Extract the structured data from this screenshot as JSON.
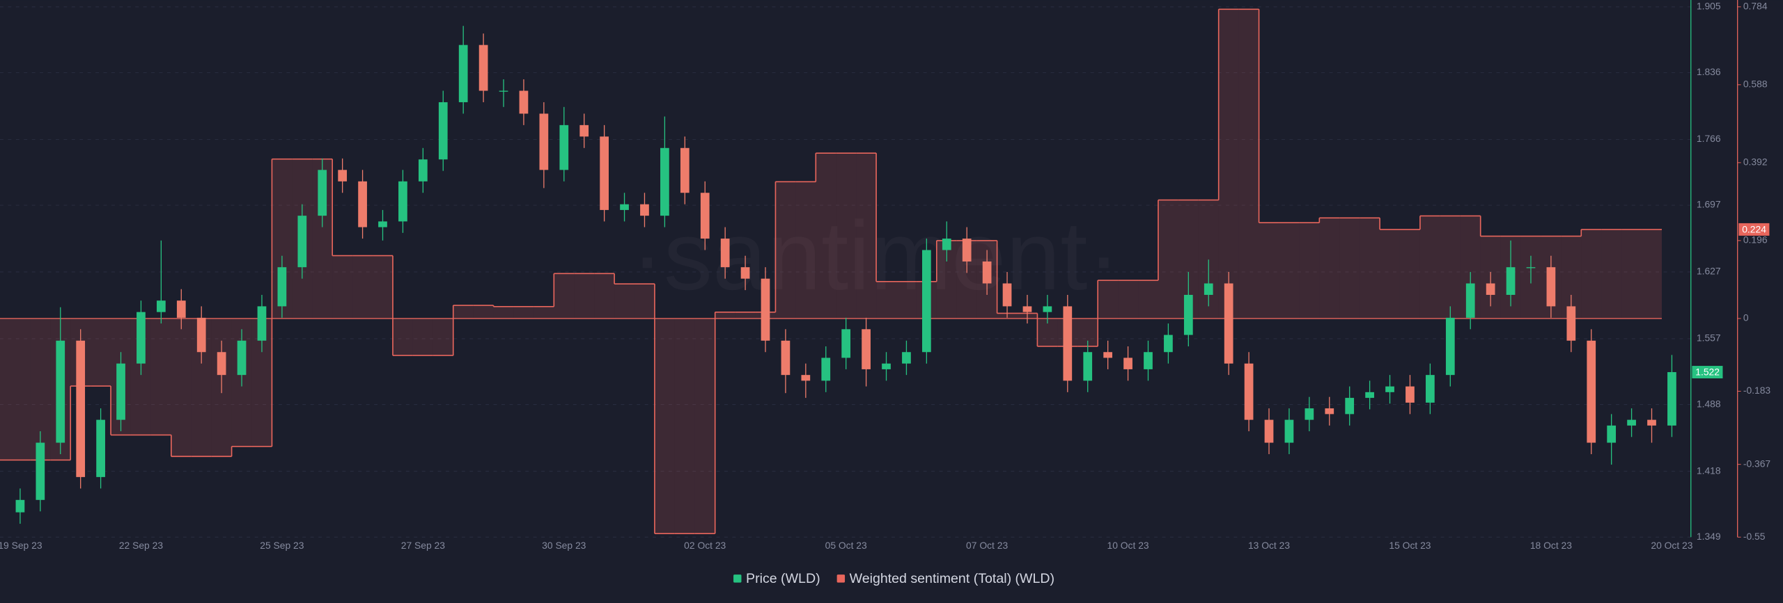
{
  "chart_data": {
    "type": "candlestick",
    "watermark": "·santiment·",
    "categories": [
      "19 Sep 23",
      null,
      null,
      null,
      null,
      null,
      "22 Sep 23",
      null,
      null,
      null,
      null,
      null,
      null,
      "25 Sep 23",
      null,
      null,
      null,
      null,
      null,
      null,
      "27 Sep 23",
      null,
      null,
      null,
      null,
      null,
      null,
      "30 Sep 23",
      null,
      null,
      null,
      null,
      null,
      null,
      "02 Oct 23",
      null,
      null,
      null,
      null,
      null,
      null,
      "05 Oct 23",
      null,
      null,
      null,
      null,
      null,
      null,
      "07 Oct 23",
      null,
      null,
      null,
      null,
      null,
      null,
      "10 Oct 23",
      null,
      null,
      null,
      null,
      null,
      null,
      "13 Oct 23",
      null,
      null,
      null,
      null,
      null,
      null,
      "15 Oct 23",
      null,
      null,
      null,
      null,
      null,
      null,
      "18 Oct 23",
      null,
      null,
      null,
      null,
      null,
      "20 Oct 23"
    ],
    "series": [
      {
        "name": "Price (WLD)",
        "color": "#26c281",
        "down_color": "#ee7c6b",
        "open": [
          1.375,
          1.388,
          1.448,
          1.555,
          1.412,
          1.472,
          1.531,
          1.585,
          1.597,
          1.579,
          1.543,
          1.519,
          1.555,
          1.591,
          1.632,
          1.686,
          1.734,
          1.722,
          1.674,
          1.68,
          1.722,
          1.745,
          1.805,
          1.865,
          1.817,
          1.817,
          1.793,
          1.734,
          1.781,
          1.769,
          1.692,
          1.698,
          1.686,
          1.757,
          1.71,
          1.662,
          1.632,
          1.62,
          1.555,
          1.519,
          1.513,
          1.537,
          1.567,
          1.525,
          1.531,
          1.543,
          1.65,
          1.662,
          1.638,
          1.615,
          1.591,
          1.585,
          1.591,
          1.513,
          1.543,
          1.537,
          1.525,
          1.543,
          1.561,
          1.603,
          1.615,
          1.531,
          1.472,
          1.448,
          1.472,
          1.484,
          1.478,
          1.495,
          1.501,
          1.507,
          1.49,
          1.519,
          1.579,
          1.615,
          1.603,
          1.632,
          1.632,
          1.591,
          1.555,
          1.448,
          1.466,
          1.472,
          1.466
        ],
        "high": [
          1.4,
          1.46,
          1.59,
          1.567,
          1.484,
          1.543,
          1.597,
          1.66,
          1.609,
          1.591,
          1.555,
          1.567,
          1.603,
          1.644,
          1.698,
          1.746,
          1.746,
          1.734,
          1.692,
          1.734,
          1.757,
          1.817,
          1.885,
          1.877,
          1.829,
          1.829,
          1.805,
          1.8,
          1.793,
          1.781,
          1.71,
          1.71,
          1.79,
          1.769,
          1.722,
          1.674,
          1.644,
          1.632,
          1.567,
          1.531,
          1.549,
          1.579,
          1.579,
          1.543,
          1.555,
          1.662,
          1.68,
          1.674,
          1.65,
          1.627,
          1.603,
          1.603,
          1.603,
          1.555,
          1.555,
          1.549,
          1.555,
          1.573,
          1.627,
          1.64,
          1.627,
          1.543,
          1.484,
          1.484,
          1.496,
          1.496,
          1.507,
          1.513,
          1.519,
          1.519,
          1.531,
          1.591,
          1.627,
          1.627,
          1.66,
          1.644,
          1.644,
          1.603,
          1.567,
          1.478,
          1.484,
          1.484,
          1.54
        ],
        "low": [
          1.363,
          1.376,
          1.436,
          1.4,
          1.4,
          1.46,
          1.519,
          1.573,
          1.567,
          1.531,
          1.5,
          1.507,
          1.543,
          1.579,
          1.62,
          1.674,
          1.71,
          1.662,
          1.66,
          1.668,
          1.71,
          1.733,
          1.793,
          1.805,
          1.8,
          1.781,
          1.715,
          1.722,
          1.757,
          1.68,
          1.68,
          1.674,
          1.674,
          1.698,
          1.65,
          1.62,
          1.608,
          1.543,
          1.5,
          1.495,
          1.501,
          1.525,
          1.507,
          1.513,
          1.519,
          1.531,
          1.638,
          1.626,
          1.603,
          1.579,
          1.573,
          1.573,
          1.501,
          1.501,
          1.525,
          1.513,
          1.513,
          1.531,
          1.549,
          1.591,
          1.519,
          1.46,
          1.436,
          1.436,
          1.46,
          1.466,
          1.466,
          1.483,
          1.489,
          1.478,
          1.478,
          1.507,
          1.567,
          1.591,
          1.591,
          1.615,
          1.579,
          1.543,
          1.436,
          1.425,
          1.454,
          1.448,
          1.454
        ],
        "close": [
          1.388,
          1.448,
          1.555,
          1.412,
          1.472,
          1.531,
          1.585,
          1.597,
          1.579,
          1.543,
          1.519,
          1.555,
          1.591,
          1.632,
          1.686,
          1.734,
          1.722,
          1.674,
          1.68,
          1.722,
          1.745,
          1.805,
          1.865,
          1.817,
          1.817,
          1.793,
          1.734,
          1.781,
          1.769,
          1.692,
          1.698,
          1.686,
          1.757,
          1.71,
          1.662,
          1.632,
          1.62,
          1.555,
          1.519,
          1.513,
          1.537,
          1.567,
          1.525,
          1.531,
          1.543,
          1.65,
          1.662,
          1.638,
          1.615,
          1.591,
          1.585,
          1.591,
          1.513,
          1.543,
          1.537,
          1.525,
          1.543,
          1.561,
          1.603,
          1.615,
          1.531,
          1.472,
          1.448,
          1.472,
          1.484,
          1.478,
          1.495,
          1.501,
          1.507,
          1.49,
          1.519,
          1.579,
          1.615,
          1.603,
          1.632,
          1.632,
          1.591,
          1.555,
          1.448,
          1.466,
          1.472,
          1.466,
          1.522
        ]
      },
      {
        "name": "Weighted sentiment (Total) (WLD)",
        "type": "step",
        "axis": "y2",
        "color": "#e8665c",
        "values": [
          -0.356,
          -0.356,
          -0.356,
          -0.17,
          -0.17,
          -0.293,
          -0.293,
          -0.293,
          -0.347,
          -0.347,
          -0.347,
          -0.322,
          -0.322,
          0.401,
          0.401,
          0.401,
          0.158,
          0.158,
          0.158,
          -0.093,
          -0.093,
          -0.093,
          0.033,
          0.033,
          0.03,
          0.03,
          0.03,
          0.113,
          0.113,
          0.113,
          0.087,
          0.087,
          -0.541,
          -0.541,
          -0.541,
          0.016,
          0.016,
          0.016,
          0.344,
          0.344,
          0.416,
          0.416,
          0.416,
          0.093,
          0.093,
          0.093,
          0.196,
          0.196,
          0.196,
          0.013,
          0.013,
          -0.07,
          -0.07,
          -0.07,
          0.096,
          0.096,
          0.096,
          0.298,
          0.298,
          0.298,
          0.778,
          0.778,
          0.241,
          0.241,
          0.241,
          0.253,
          0.253,
          0.253,
          0.224,
          0.224,
          0.258,
          0.258,
          0.258,
          0.207,
          0.207,
          0.207,
          0.207,
          0.207,
          0.224,
          0.224,
          0.224,
          0.224,
          null
        ]
      }
    ],
    "ylim": [
      1.349,
      1.905
    ],
    "yticks": [
      1.349,
      1.418,
      1.488,
      1.557,
      1.627,
      1.697,
      1.766,
      1.836,
      1.905
    ],
    "y2lim": [
      -0.55,
      0.784
    ],
    "y2ticks": [
      -0.55,
      -0.367,
      -0.183,
      0,
      0.196,
      0.392,
      0.588,
      0.784
    ],
    "price_marker": 1.522,
    "sentiment_marker": 0.224,
    "grid": true,
    "legend": "bottom"
  }
}
